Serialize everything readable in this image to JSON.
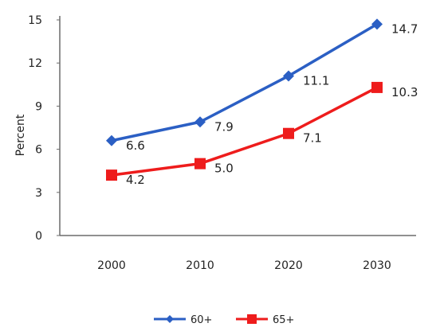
{
  "chart_data": {
    "type": "line",
    "categories": [
      "2000",
      "2010",
      "2020",
      "2030"
    ],
    "ylabel": "Percent",
    "xlabel": "",
    "ylim": [
      0,
      15
    ],
    "yticks": [
      0,
      3,
      6,
      9,
      12,
      15
    ],
    "grid": false,
    "legend_position": "bottom",
    "series": [
      {
        "name": "60+",
        "values": [
          6.6,
          7.9,
          11.1,
          14.7
        ],
        "color": "#2b5fc4",
        "marker": "diamond",
        "labels": [
          "6.6",
          "7.9",
          "11.1",
          "14.7"
        ]
      },
      {
        "name": "65+",
        "values": [
          4.2,
          5.0,
          7.1,
          10.3
        ],
        "color": "#ee1c1c",
        "marker": "square",
        "labels": [
          "4.2",
          "5.0",
          "7.1",
          "10.3"
        ]
      }
    ]
  }
}
